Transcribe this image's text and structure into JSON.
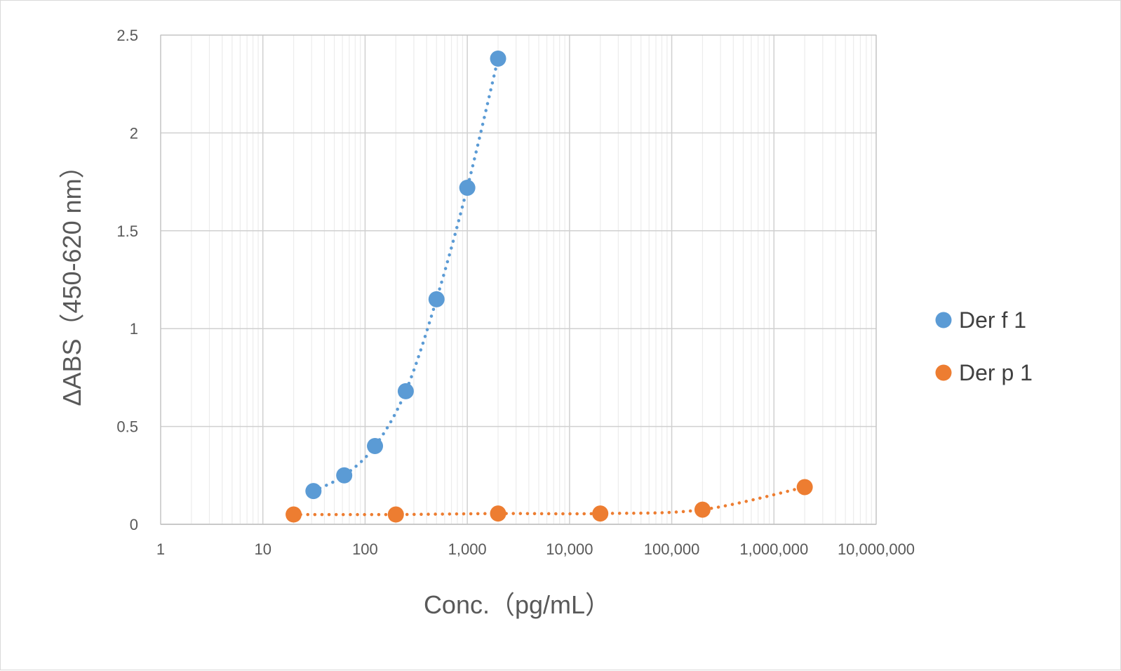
{
  "chart_data": {
    "type": "scatter",
    "title": "",
    "xlabel": "Conc.（pg/mL）",
    "ylabel": "ΔABS（450-620 nm）",
    "xscale": "log",
    "xlim": [
      1,
      10000000
    ],
    "ylim": [
      0,
      2.5
    ],
    "x_ticks": [
      {
        "value": 1,
        "label": "1"
      },
      {
        "value": 10,
        "label": "10"
      },
      {
        "value": 100,
        "label": "100"
      },
      {
        "value": 1000,
        "label": "1,000"
      },
      {
        "value": 10000,
        "label": "10,000"
      },
      {
        "value": 100000,
        "label": "100,000"
      },
      {
        "value": 1000000,
        "label": "1,000,000"
      },
      {
        "value": 10000000,
        "label": "10,000,000"
      }
    ],
    "y_ticks": [
      {
        "value": 0,
        "label": "0"
      },
      {
        "value": 0.5,
        "label": "0.5"
      },
      {
        "value": 1,
        "label": "1"
      },
      {
        "value": 1.5,
        "label": "1.5"
      },
      {
        "value": 2,
        "label": "2"
      },
      {
        "value": 2.5,
        "label": "2.5"
      }
    ],
    "grid": true,
    "minor_grid": true,
    "legend_position": "right",
    "series": [
      {
        "name": "Der f 1",
        "color": "#5B9BD5",
        "line": "dotted",
        "x": [
          31.25,
          62.5,
          125,
          250,
          500,
          1000,
          2000
        ],
        "y": [
          0.17,
          0.25,
          0.4,
          0.68,
          1.15,
          1.72,
          2.38
        ]
      },
      {
        "name": "Der p 1",
        "color": "#ED7D31",
        "line": "dotted",
        "x": [
          20,
          200,
          2000,
          20000,
          200000,
          2000000
        ],
        "y": [
          0.05,
          0.05,
          0.055,
          0.055,
          0.075,
          0.19
        ]
      }
    ]
  }
}
